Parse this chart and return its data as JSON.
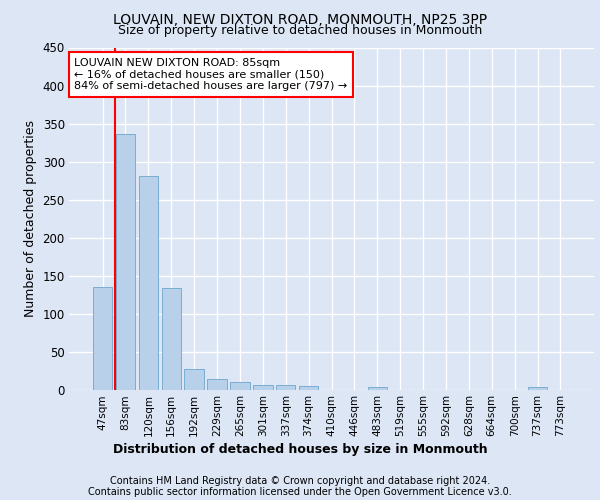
{
  "title": "LOUVAIN, NEW DIXTON ROAD, MONMOUTH, NP25 3PP",
  "subtitle": "Size of property relative to detached houses in Monmouth",
  "xlabel": "Distribution of detached houses by size in Monmouth",
  "ylabel": "Number of detached properties",
  "categories": [
    "47sqm",
    "83sqm",
    "120sqm",
    "156sqm",
    "192sqm",
    "229sqm",
    "265sqm",
    "301sqm",
    "337sqm",
    "374sqm",
    "410sqm",
    "446sqm",
    "483sqm",
    "519sqm",
    "555sqm",
    "592sqm",
    "628sqm",
    "664sqm",
    "700sqm",
    "737sqm",
    "773sqm"
  ],
  "values": [
    135,
    336,
    281,
    134,
    27,
    15,
    11,
    7,
    6,
    5,
    0,
    0,
    4,
    0,
    0,
    0,
    0,
    0,
    0,
    4,
    0
  ],
  "bar_color": "#b8d0ea",
  "bar_edge_color": "#7aadd4",
  "annotation_text_line1": "LOUVAIN NEW DIXTON ROAD: 85sqm",
  "annotation_text_line2": "← 16% of detached houses are smaller (150)",
  "annotation_text_line3": "84% of semi-detached houses are larger (797) →",
  "annotation_box_color": "white",
  "annotation_border_color": "red",
  "vline_color": "red",
  "vline_x_index": 1,
  "ylim": [
    0,
    450
  ],
  "yticks": [
    0,
    50,
    100,
    150,
    200,
    250,
    300,
    350,
    400,
    450
  ],
  "footer_line1": "Contains HM Land Registry data © Crown copyright and database right 2024.",
  "footer_line2": "Contains public sector information licensed under the Open Government Licence v3.0.",
  "background_color": "#dce6f5",
  "plot_bg_color": "#dce6f5",
  "grid_color": "white"
}
